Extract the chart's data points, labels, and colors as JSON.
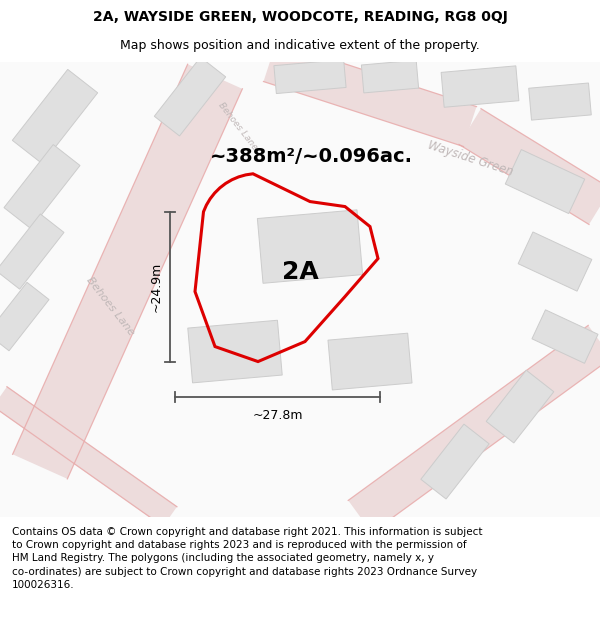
{
  "title": "2A, WAYSIDE GREEN, WOODCOTE, READING, RG8 0QJ",
  "subtitle": "Map shows position and indicative extent of the property.",
  "footer": "Contains OS data © Crown copyright and database right 2021. This information is subject\nto Crown copyright and database rights 2023 and is reproduced with the permission of\nHM Land Registry. The polygons (including the associated geometry, namely x, y\nco-ordinates) are subject to Crown copyright and database rights 2023 Ordnance Survey\n100026316.",
  "area_text": "~388m²/~0.096ac.",
  "label_2a": "2A",
  "dim_width": "~27.8m",
  "dim_height": "~24.9m",
  "road_label_behoes_bottom": "Behoes Lane",
  "road_label_behoes_top": "Behoes Lane",
  "road_label_wayside": "Wayside Green",
  "bg_color": "#f8f7f5",
  "building_fill": "#e0e0e0",
  "building_edge": "#cccccc",
  "road_fill": "#eddcdc",
  "road_line_color": "#e8aaaa",
  "highlight_stroke": "#dd0000",
  "dim_color": "#555555",
  "text_color": "#000000",
  "road_text_color": "#c0b8b8",
  "title_fontsize": 10,
  "subtitle_fontsize": 9,
  "footer_fontsize": 7.5,
  "area_fontsize": 14,
  "label_fontsize": 18,
  "dim_fontsize": 9,
  "road_fontsize": 8
}
